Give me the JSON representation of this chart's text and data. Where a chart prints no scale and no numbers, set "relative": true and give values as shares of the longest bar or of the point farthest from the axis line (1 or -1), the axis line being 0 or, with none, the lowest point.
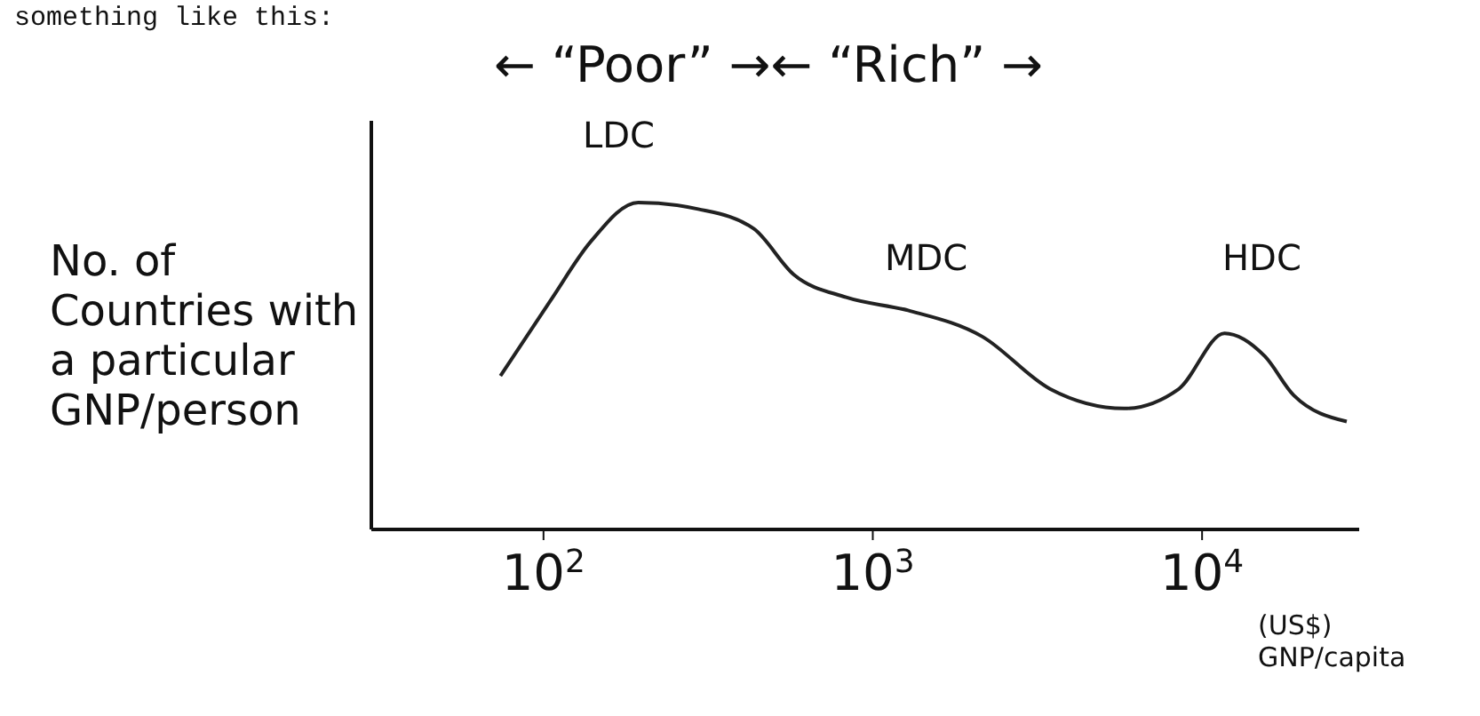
{
  "chart_data": {
    "type": "line",
    "relative": true,
    "log": "x",
    "xlabel": "(US$) GNP/capita",
    "ylabel": "No. of Countries with a particular GNP/person",
    "annotations": [
      "something like this:",
      "← “Poor” →← “Rich” →",
      "LDC",
      "MDC",
      "HDC"
    ],
    "x": [
      74,
      105,
      139,
      194,
      295,
      435,
      575,
      830,
      1280,
      2150,
      3450,
      5800,
      8500,
      11700,
      15500,
      19000,
      27500
    ],
    "series": [
      {
        "color": "#222222",
        "values": [
          0.47,
          0.7,
          0.88,
          1.0,
          0.98,
          0.92,
          0.78,
          0.71,
          0.67,
          0.59,
          0.43,
          0.37,
          0.43,
          0.6,
          0.53,
          0.41,
          0.33
        ]
      }
    ],
    "xlim": [
      30,
      30000
    ],
    "xticks": [
      {
        "value": 100,
        "label": "10$^{2}$"
      },
      {
        "value": 1000,
        "label": "10$^{3}$"
      },
      {
        "value": 10000,
        "label": "10$^{4}$"
      }
    ],
    "grid": false,
    "legend": false,
    "marker": "none",
    "line_style": "solid"
  }
}
